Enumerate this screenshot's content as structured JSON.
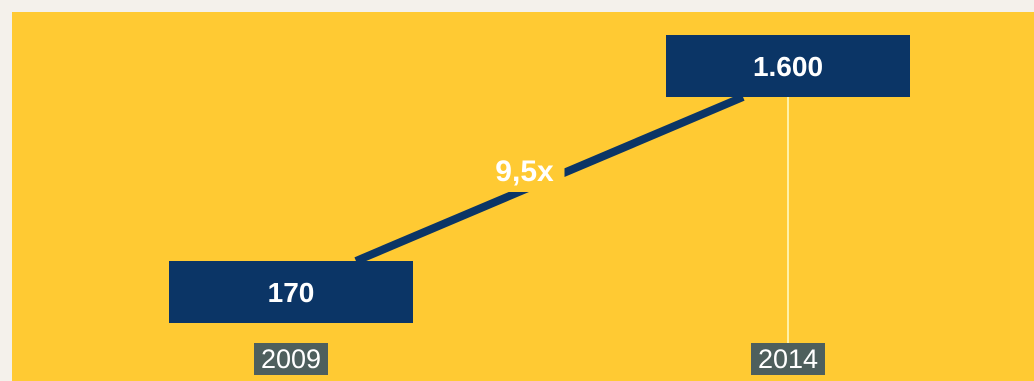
{
  "chart_data": {
    "type": "line",
    "categories": [
      "2009",
      "2014"
    ],
    "values": [
      170,
      1600
    ],
    "value_labels": [
      "170",
      "1.600"
    ],
    "annotation": "9,5x",
    "colors": {
      "background": "#ffca33",
      "accent": "#0b3566",
      "text": "#ffffff",
      "tick_label_bg": "#4e5f5d",
      "leader_line": "#fff1a8"
    }
  }
}
